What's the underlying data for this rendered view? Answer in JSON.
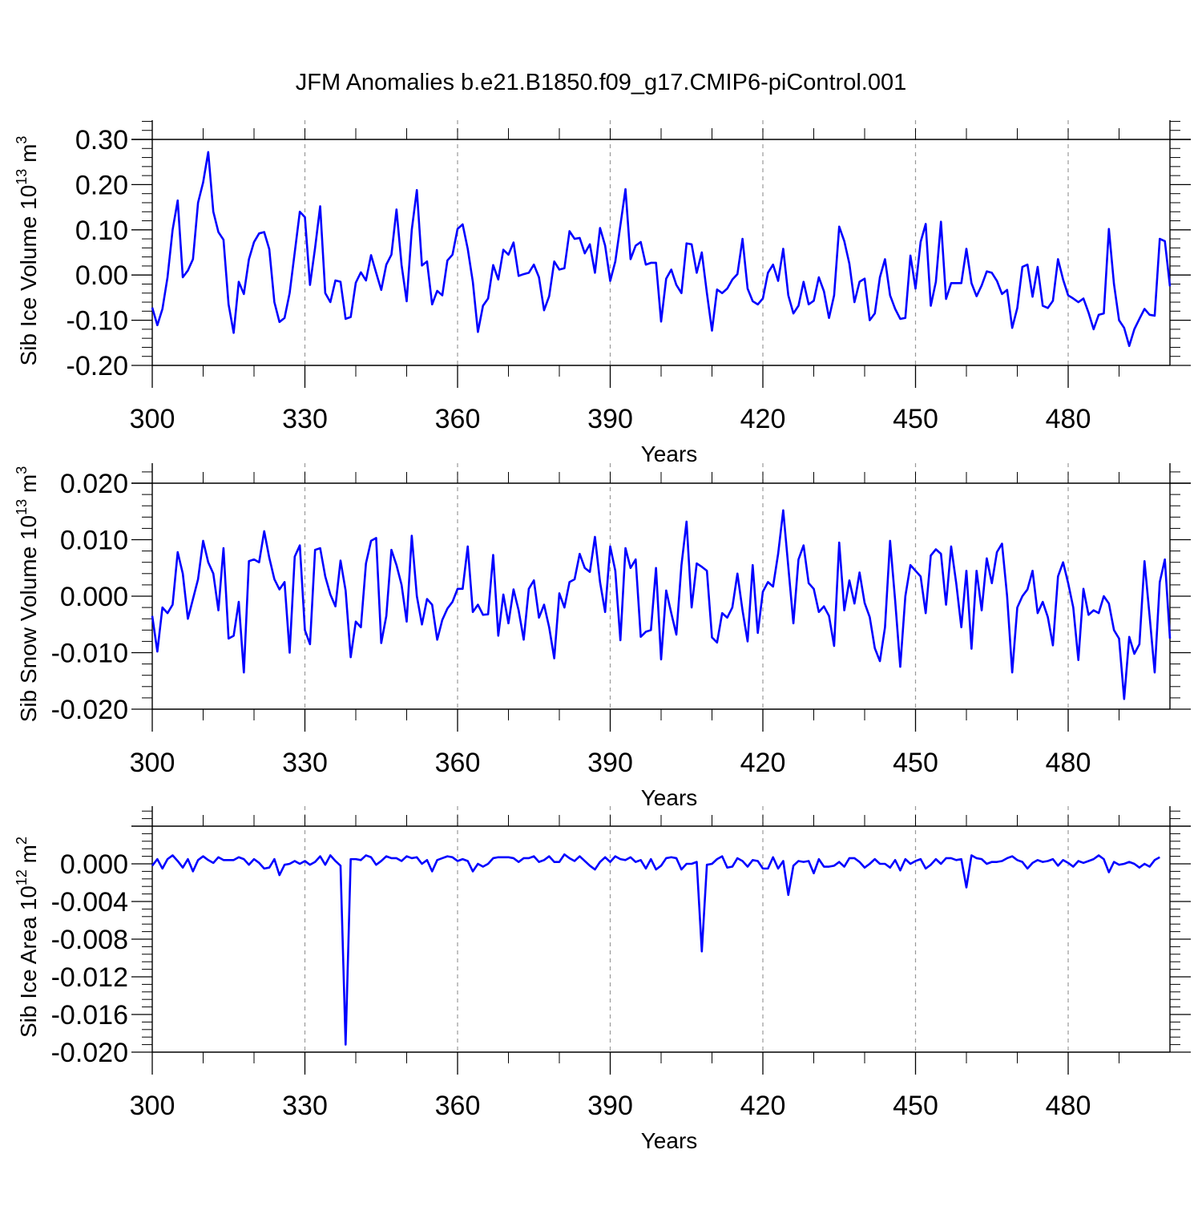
{
  "title": "JFM Anomalies b.e21.B1850.f09_g17.CMIP6-piControl.001",
  "line_color": "#0000ff",
  "chart_data": [
    {
      "type": "line",
      "ylabel_main": "Sib Ice Volume 10",
      "ylabel_exp": "13",
      "ylabel_unit": " m",
      "ylabel_unit_exp": "3",
      "xlabel": "Years",
      "xlim": [
        300,
        500
      ],
      "ylim": [
        -0.2,
        0.3
      ],
      "x_ticks": [
        300,
        330,
        360,
        390,
        420,
        450,
        480
      ],
      "x_tick_labels": [
        "300",
        "330",
        "360",
        "390",
        "420",
        "450",
        "480"
      ],
      "y_ticks": [
        -0.2,
        -0.1,
        0.0,
        0.1,
        0.2,
        0.3
      ],
      "y_tick_labels": [
        "-0.20",
        "-0.10",
        "0.00",
        "0.10",
        "0.20",
        "0.30"
      ],
      "y_minor_step": 0.02,
      "x_start": 300,
      "values": [
        -0.072,
        -0.111,
        -0.075,
        -0.005,
        0.1,
        0.165,
        -0.005,
        0.01,
        0.035,
        0.16,
        0.205,
        0.272,
        0.14,
        0.095,
        0.078,
        -0.065,
        -0.128,
        -0.015,
        -0.042,
        0.035,
        0.073,
        0.092,
        0.095,
        0.057,
        -0.06,
        -0.104,
        -0.095,
        -0.04,
        0.05,
        0.14,
        0.128,
        -0.022,
        0.06,
        0.152,
        -0.04,
        -0.06,
        -0.012,
        -0.015,
        -0.097,
        -0.093,
        -0.017,
        0.006,
        -0.012,
        0.044,
        0.005,
        -0.033,
        0.023,
        0.045,
        0.145,
        0.022,
        -0.058,
        0.1,
        0.188,
        0.021,
        0.03,
        -0.065,
        -0.035,
        -0.045,
        0.032,
        0.045,
        0.102,
        0.112,
        0.058,
        -0.015,
        -0.126,
        -0.068,
        -0.052,
        0.022,
        -0.01,
        0.056,
        0.045,
        0.072,
        -0.002,
        0.002,
        0.005,
        0.023,
        -0.005,
        -0.078,
        -0.047,
        0.03,
        0.012,
        0.015,
        0.097,
        0.08,
        0.082,
        0.048,
        0.068,
        0.005,
        0.104,
        0.065,
        -0.013,
        0.03,
        0.11,
        0.19,
        0.035,
        0.065,
        0.073,
        0.023,
        0.027,
        0.027,
        -0.103,
        -0.008,
        0.012,
        -0.022,
        -0.04,
        0.07,
        0.068,
        0.005,
        0.05,
        -0.04,
        -0.123,
        -0.032,
        -0.04,
        -0.03,
        -0.01,
        0.002,
        0.08,
        -0.03,
        -0.058,
        -0.065,
        -0.052,
        0.005,
        0.023,
        -0.013,
        0.058,
        -0.045,
        -0.085,
        -0.068,
        -0.015,
        -0.065,
        -0.057,
        -0.005,
        -0.036,
        -0.095,
        -0.045,
        0.107,
        0.075,
        0.025,
        -0.06,
        -0.015,
        -0.008,
        -0.1,
        -0.085,
        -0.005,
        0.035,
        -0.045,
        -0.075,
        -0.097,
        -0.095,
        0.043,
        -0.03,
        0.073,
        0.113,
        -0.068,
        -0.015,
        0.118,
        -0.053,
        -0.018,
        -0.018,
        -0.018,
        0.058,
        -0.018,
        -0.047,
        -0.023,
        0.008,
        0.005,
        -0.013,
        -0.042,
        -0.033,
        -0.117,
        -0.073,
        0.018,
        0.023,
        -0.048,
        0.018,
        -0.068,
        -0.073,
        -0.057,
        0.035,
        -0.01,
        -0.045,
        -0.052,
        -0.06,
        -0.052,
        -0.083,
        -0.12,
        -0.088,
        -0.085,
        0.102,
        -0.02,
        -0.1,
        -0.117,
        -0.157,
        -0.12,
        -0.097,
        -0.075,
        -0.088,
        -0.09,
        0.08,
        0.075,
        -0.025
      ]
    },
    {
      "type": "line",
      "ylabel_main": "Sib Snow Volume 10",
      "ylabel_exp": "13",
      "ylabel_unit": " m",
      "ylabel_unit_exp": "3",
      "xlabel": "Years",
      "xlim": [
        300,
        500
      ],
      "ylim": [
        -0.02,
        0.02
      ],
      "x_ticks": [
        300,
        330,
        360,
        390,
        420,
        450,
        480
      ],
      "x_tick_labels": [
        "300",
        "330",
        "360",
        "390",
        "420",
        "450",
        "480"
      ],
      "y_ticks": [
        -0.02,
        -0.01,
        0.0,
        0.01,
        0.02
      ],
      "y_tick_labels": [
        "-0.020",
        "-0.010",
        "0.000",
        "0.010",
        "0.020"
      ],
      "y_minor_step": 0.002,
      "x_start": 300,
      "values": [
        -0.0035,
        -0.0098,
        -0.002,
        -0.003,
        -0.0015,
        0.0078,
        0.004,
        -0.004,
        -0.0005,
        0.003,
        0.0098,
        0.006,
        0.004,
        -0.0025,
        0.0085,
        -0.0075,
        -0.007,
        -0.001,
        -0.0135,
        0.0062,
        0.0065,
        0.006,
        0.0115,
        0.0068,
        0.003,
        0.0012,
        0.0025,
        -0.01,
        0.007,
        0.009,
        -0.006,
        -0.0085,
        0.0082,
        0.0085,
        0.0035,
        0.0003,
        -0.0018,
        0.0063,
        0.001,
        -0.0108,
        -0.0045,
        -0.0055,
        0.0058,
        0.0098,
        0.0103,
        -0.0083,
        -0.0035,
        0.0082,
        0.0055,
        0.002,
        -0.0045,
        0.0107,
        0.0,
        -0.005,
        -0.0005,
        -0.0015,
        -0.0077,
        -0.0042,
        -0.0022,
        -0.001,
        0.0013,
        0.0013,
        0.0088,
        -0.0028,
        -0.0015,
        -0.0033,
        -0.0032,
        0.0073,
        -0.007,
        0.0003,
        -0.0048,
        0.0012,
        -0.0025,
        -0.0077,
        0.0013,
        0.0028,
        -0.0038,
        -0.0015,
        -0.0055,
        -0.011,
        0.0005,
        -0.002,
        0.0025,
        0.003,
        0.0075,
        0.005,
        0.0043,
        0.0105,
        0.0025,
        -0.0028,
        0.0088,
        0.0045,
        -0.0078,
        0.0085,
        0.005,
        0.0065,
        -0.0072,
        -0.0063,
        -0.006,
        0.005,
        -0.0112,
        0.001,
        -0.003,
        -0.0068,
        0.0055,
        0.0132,
        -0.002,
        0.0058,
        0.0052,
        0.0045,
        -0.0073,
        -0.0082,
        -0.003,
        -0.0038,
        -0.002,
        0.004,
        -0.0025,
        -0.008,
        0.0055,
        -0.0065,
        0.0008,
        0.0025,
        0.0017,
        0.0075,
        0.0152,
        0.0052,
        -0.0048,
        0.0065,
        0.009,
        0.0023,
        0.0013,
        -0.0028,
        -0.0018,
        -0.0035,
        -0.0088,
        0.0095,
        -0.0025,
        0.0028,
        -0.0013,
        0.0042,
        -0.0012,
        -0.0037,
        -0.0092,
        -0.0115,
        -0.0055,
        0.0098,
        -0.0008,
        -0.0125,
        0.0,
        0.0055,
        0.0045,
        0.0035,
        -0.003,
        0.0072,
        0.0083,
        0.0075,
        -0.0015,
        0.0088,
        0.0023,
        -0.0055,
        0.0045,
        -0.0093,
        0.0045,
        -0.0025,
        0.0067,
        0.0023,
        0.0078,
        0.0093,
        0.0,
        -0.0135,
        -0.002,
        0.0,
        0.0012,
        0.0045,
        -0.003,
        -0.001,
        -0.0037,
        -0.0087,
        0.0035,
        0.006,
        0.0023,
        -0.002,
        -0.0113,
        0.0013,
        -0.0033,
        -0.0025,
        -0.003,
        0.0,
        -0.0013,
        -0.006,
        -0.0075,
        -0.0182,
        -0.0072,
        -0.0102,
        -0.0085,
        0.0062,
        -0.0035,
        -0.0135,
        0.0025,
        0.0065,
        -0.0075
      ]
    },
    {
      "type": "line",
      "ylabel_main": "Sib Ice Area 10",
      "ylabel_exp": "12",
      "ylabel_unit": " m",
      "ylabel_unit_exp": "2",
      "xlabel": "Years",
      "xlim": [
        300,
        500
      ],
      "ylim": [
        -0.02,
        0.004
      ],
      "x_ticks": [
        300,
        330,
        360,
        390,
        420,
        450,
        480
      ],
      "x_tick_labels": [
        "300",
        "330",
        "360",
        "390",
        "420",
        "450",
        "480"
      ],
      "y_ticks": [
        -0.02,
        -0.016,
        -0.012,
        -0.008,
        -0.004,
        0.0
      ],
      "y_tick_labels": [
        "-0.020",
        "-0.016",
        "-0.012",
        "-0.008",
        "-0.004",
        "0.000"
      ],
      "y_minor_step": 0.0008,
      "x_start": 300,
      "values": [
        -0.0002,
        0.0005,
        -0.0005,
        0.0005,
        0.0009,
        0.0003,
        -0.0004,
        0.0005,
        -0.0008,
        0.0004,
        0.0008,
        0.0004,
        0.0001,
        0.0007,
        0.0004,
        0.0004,
        0.0004,
        0.0007,
        0.0005,
        -0.0001,
        0.0005,
        0.0001,
        -0.0005,
        -0.0004,
        0.0005,
        -0.0012,
        -0.0001,
        0.0,
        0.0003,
        0.0,
        0.0003,
        -0.0001,
        0.0002,
        0.0008,
        -0.0001,
        0.0009,
        0.0003,
        -0.0002,
        -0.0192,
        0.0005,
        0.0005,
        0.0004,
        0.0009,
        0.0007,
        -0.0001,
        0.0003,
        0.0008,
        0.0006,
        0.0006,
        0.0003,
        0.0008,
        0.0006,
        0.0007,
        0.0,
        0.0004,
        -0.0008,
        0.0004,
        0.0006,
        0.0008,
        0.0007,
        0.0003,
        0.0005,
        0.0003,
        -0.0008,
        0.0,
        -0.0003,
        0.0,
        0.0006,
        0.0007,
        0.0007,
        0.0007,
        0.0006,
        0.0002,
        0.0006,
        0.0006,
        0.0008,
        0.0002,
        0.0004,
        0.0008,
        0.0002,
        0.0002,
        0.001,
        0.0006,
        0.0003,
        0.0008,
        0.0003,
        -0.0002,
        -0.0006,
        0.0002,
        0.0007,
        0.0002,
        0.0008,
        0.0005,
        0.0004,
        0.0007,
        0.0002,
        0.0004,
        -0.0005,
        0.0005,
        -0.0006,
        -0.0002,
        0.0006,
        0.0007,
        0.0006,
        -0.0006,
        0.0,
        0.0,
        0.0002,
        -0.0093,
        -0.0001,
        0.0,
        0.0005,
        0.0008,
        -0.0004,
        -0.0003,
        0.0006,
        0.0003,
        -0.0003,
        0.0004,
        0.0003,
        -0.0005,
        -0.0005,
        0.0007,
        -0.0005,
        0.0003,
        -0.0033,
        -0.0002,
        0.0003,
        0.0002,
        0.0003,
        -0.001,
        0.0005,
        -0.0003,
        -0.0003,
        -0.0002,
        0.0002,
        -0.0003,
        0.0006,
        0.0006,
        0.0002,
        -0.0004,
        0.0,
        0.0005,
        0.0,
        0.0,
        -0.0004,
        0.0004,
        -0.0007,
        0.0005,
        0.0,
        0.0003,
        0.0005,
        -0.0005,
        -0.0001,
        0.0005,
        0.0,
        0.0006,
        0.0006,
        0.0004,
        0.0005,
        -0.0025,
        0.0009,
        0.0006,
        0.0005,
        0.0,
        0.0002,
        0.0002,
        0.0003,
        0.0006,
        0.0008,
        0.0004,
        0.0002,
        -0.0005,
        0.0001,
        0.0004,
        0.0002,
        0.0003,
        0.0005,
        -0.0002,
        0.0004,
        0.0001,
        -0.0003,
        0.0003,
        0.0001,
        0.0003,
        0.0005,
        0.0009,
        0.0005,
        -0.0009,
        0.0002,
        -0.0001,
        0.0,
        0.0002,
        0.0,
        -0.0004,
        0.0,
        -0.0003,
        0.0004,
        0.0007
      ]
    }
  ]
}
